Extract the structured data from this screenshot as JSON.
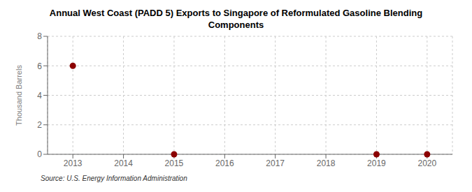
{
  "chart_data": {
    "type": "scatter",
    "title": "Annual West Coast (PADD 5) Exports to Singapore of Reformulated Gasoline Blending\nComponents",
    "ylabel": "Thousand Barrels",
    "annotations": [
      "Source: U.S. Energy Information Administration"
    ],
    "x": [
      2013,
      2015,
      2019,
      2020
    ],
    "values": [
      6.0,
      0.0,
      0.0,
      0.0
    ],
    "color": "#8B0000",
    "marker": "circle",
    "xlim": [
      2012.5,
      2020.5
    ],
    "ylim": [
      0,
      8
    ],
    "xticks": [
      2013,
      2014,
      2015,
      2016,
      2017,
      2018,
      2019,
      2020
    ],
    "yticks": [
      0,
      2,
      4,
      6,
      8
    ],
    "grid": true
  }
}
